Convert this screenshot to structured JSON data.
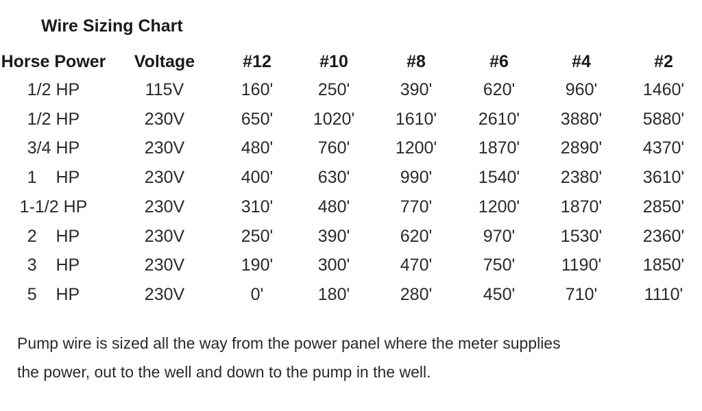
{
  "title": "Wire Sizing Chart",
  "table": {
    "headers": [
      "Horse Power",
      "Voltage",
      "#12",
      "#10",
      "#8",
      "#6",
      "#4",
      "#2"
    ],
    "rows": [
      [
        "1/2 HP",
        "115V",
        "160'",
        "250'",
        "390'",
        "620'",
        "960'",
        "1460'"
      ],
      [
        "1/2 HP",
        "230V",
        "650'",
        "1020'",
        "1610'",
        "2610'",
        "3880'",
        "5880'"
      ],
      [
        "3/4 HP",
        "230V",
        "480'",
        "760'",
        "1200'",
        "1870'",
        "2890'",
        "4370'"
      ],
      [
        "1    HP",
        "230V",
        "400'",
        "630'",
        "990'",
        "1540'",
        "2380'",
        "3610'"
      ],
      [
        "1-1/2 HP",
        "230V",
        "310'",
        "480'",
        "770'",
        "1200'",
        "1870'",
        "2850'"
      ],
      [
        "2    HP",
        "230V",
        "250'",
        "390'",
        "620'",
        "970'",
        "1530'",
        "2360'"
      ],
      [
        "3    HP",
        "230V",
        "190'",
        "300'",
        "470'",
        "750'",
        "1190'",
        "1850'"
      ],
      [
        "5    HP",
        "230V",
        "0'",
        "180'",
        "280'",
        "450'",
        "710'",
        "1110'"
      ]
    ]
  },
  "note": {
    "line1": "Pump wire is sized all the way from the power panel where the meter supplies",
    "line2": "the power, out to the well and down to the pump in the well."
  }
}
